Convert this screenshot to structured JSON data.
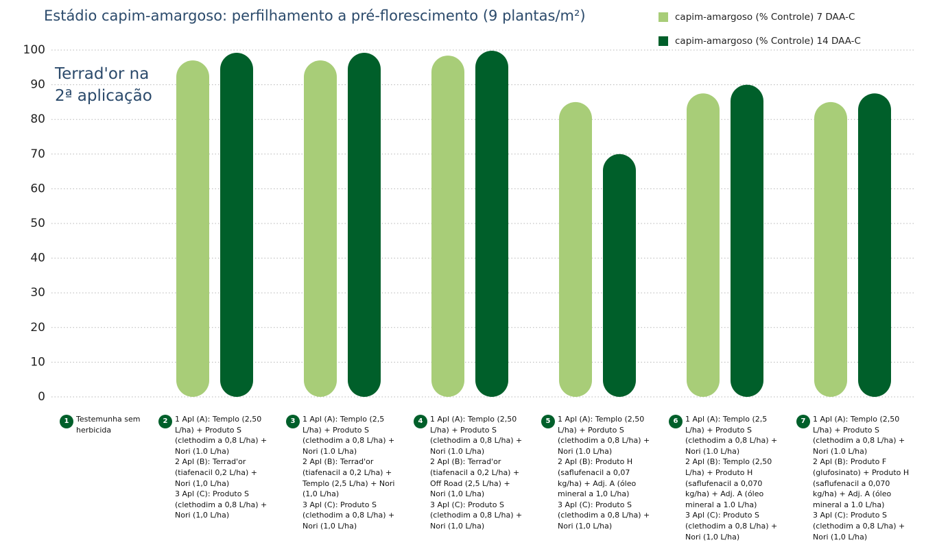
{
  "chart_data": {
    "type": "bar",
    "title": "Estádio capim-amargoso: perfilhamento a pré-florescimento (9 plantas/m²)",
    "annotation": "Terrad'or na 2ª aplicação",
    "category_numbers": [
      "1",
      "2",
      "3",
      "4",
      "5",
      "6",
      "7"
    ],
    "categories": [
      "Testemunha sem herbicida",
      "1 Apl (A): Templo (2,50 L/ha) + Produto S (clethodim a 0,8 L/ha) + Nori (1.0 L/ha)\n2 Apl (B): Terrad'or (tiafenacil 0,2 L/ha) + Nori (1,0 L/ha)\n3 Apl (C): Produto S (clethodim a 0,8 L/ha) + Nori (1,0 L/ha)",
      "1 Apl (A): Templo (2,5 L/ha) + Produto S (clethodim a 0,8 L/ha) + Nori (1.0 L/ha)\n2 Apl (B): Terrad'or (tiafenacil a 0,2 L/ha) + Templo (2,5 L/ha) + Nori (1,0 L/ha)\n3 Apl (C): Produto S (clethodim a 0,8 L/ha) + Nori (1,0 L/ha)",
      "1 Apl (A): Templo (2,50 L/ha) + Produto S (clethodim a 0,8 L/ha) + Nori (1.0 L/ha)\n2 Apl (B): Terrad'or (tiafenacil a 0,2 L/ha) + Off Road (2,5 L/ha) + Nori (1,0 L/ha)\n3 Apl (C): Produto S (clethodim a 0,8 L/ha) + Nori (1,0 L/ha)",
      "1 Apl (A): Templo (2,50 L/ha) +  Porduto S (clethodim a 0,8 L/ha) + Nori (1.0 L/ha)\n2 Apl (B): Produto H (saflufenacil a 0,07 kg/ha) + Adj. A (óleo mineral a 1,0 L/ha)\n3 Apl (C): Produto S (clethodim a 0,8 L/ha) + Nori (1,0 L/ha)",
      "1 Apl (A): Templo (2,5 L/ha) + Produto S (clethodim a 0,8 L/ha) + Nori (1.0 L/ha)\n2 Apl (B): Templo (2,50 L/ha) + Produto H (saflufenacil a 0,070 kg/ha) + Adj. A (óleo mineral a 1.0 L/ha)\n3 Apl (C): Produto S (clethodim a 0,8 L/ha) + Nori (1,0 L/ha)",
      "1 Apl (A): Templo (2,50 L/ha) + Produto S (clethodim a 0,8 L/ha) + Nori (1.0 L/ha)\n2 Apl (B): Produto F (glufosinato) + Produto H (saflufenacil a 0,070 kg/ha) + Adj. A (óleo mineral a 1.0 L/ha)\n3 Apl (C): Produto S (clethodim a 0,8 L/ha) + Nori (1,0 L/ha)"
    ],
    "series": [
      {
        "name": "capim-amargoso (% Controle) 7 DAA-C",
        "color": "#a8cd78",
        "values": [
          null,
          97,
          97,
          98.4,
          85,
          87.5,
          85
        ]
      },
      {
        "name": "capim-amargoso (% Controle) 14 DAA-C",
        "color": "#005f2a",
        "values": [
          null,
          99.2,
          99.2,
          99.8,
          70,
          90,
          87.5
        ]
      }
    ],
    "ylim": [
      0,
      100
    ],
    "yticks": [
      0,
      10,
      20,
      30,
      40,
      50,
      60,
      70,
      80,
      90,
      100
    ],
    "grid": true,
    "legend": "top-right"
  }
}
